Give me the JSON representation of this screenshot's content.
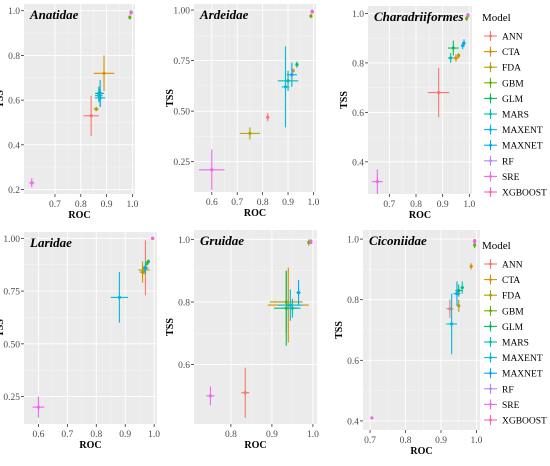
{
  "legend": {
    "title": "Model",
    "items": [
      "ANN",
      "CTA",
      "FDA",
      "GBM",
      "GLM",
      "MARS",
      "MAXENT",
      "MAXNET",
      "RF",
      "SRE",
      "XGBOOST"
    ]
  },
  "colors": {
    "ANN": "#f8766d",
    "CTA": "#db8e00",
    "FDA": "#aea200",
    "GBM": "#64b200",
    "GLM": "#00bd5c",
    "MARS": "#00c1a7",
    "MAXENT": "#00badf",
    "MAXNET": "#00a6ff",
    "RF": "#b385ff",
    "SRE": "#ef67eb",
    "XGBOOST": "#ff63b6"
  },
  "chart_data": [
    {
      "type": "scatter",
      "title": "Anatidae",
      "xlabel": "ROC",
      "ylabel": "TSS",
      "xlim": [
        0.58,
        1.01
      ],
      "ylim": [
        0.18,
        1.03
      ],
      "xticks": [
        0.7,
        0.8,
        0.9,
        1.0
      ],
      "xticklabels": [
        "0.7",
        "0.8",
        "0.9",
        "1.0"
      ],
      "yticks": [
        0.2,
        0.4,
        0.6,
        0.8,
        1.0
      ],
      "yticklabels": [
        "0.2",
        "0.4",
        "0.6",
        "0.8",
        "1.0"
      ],
      "points": [
        {
          "model": "ANN",
          "x": 0.84,
          "y": 0.53,
          "xerr": 0.03,
          "yerr": 0.09
        },
        {
          "model": "CTA",
          "x": 0.89,
          "y": 0.72,
          "xerr": 0.04,
          "yerr": 0.08
        },
        {
          "model": "FDA",
          "x": 0.86,
          "y": 0.56,
          "xerr": 0.01,
          "yerr": 0.01
        },
        {
          "model": "GBM",
          "x": 0.99,
          "y": 0.97,
          "xerr": 0.002,
          "yerr": 0.01
        },
        {
          "model": "GLM",
          "x": 0.87,
          "y": 0.63,
          "xerr": 0.015,
          "yerr": 0.03
        },
        {
          "model": "MARS",
          "x": 0.87,
          "y": 0.62,
          "xerr": 0.015,
          "yerr": 0.03
        },
        {
          "model": "MAXENT",
          "x": 0.875,
          "y": 0.61,
          "xerr": 0.02,
          "yerr": 0.04
        },
        {
          "model": "MAXNET",
          "x": 0.875,
          "y": 0.63,
          "xerr": 0.015,
          "yerr": 0.06
        },
        {
          "model": "RF",
          "x": 0.995,
          "y": 0.995,
          "xerr": 0.002,
          "yerr": 0.005
        },
        {
          "model": "SRE",
          "x": 0.61,
          "y": 0.23,
          "xerr": 0.01,
          "yerr": 0.02
        },
        {
          "model": "XGBOOST",
          "x": 0.995,
          "y": 0.99,
          "xerr": 0.002,
          "yerr": 0.005
        }
      ]
    },
    {
      "type": "scatter",
      "title": "Ardeidae",
      "xlabel": "ROC",
      "ylabel": "TSS",
      "xlim": [
        0.53,
        1.01
      ],
      "ylim": [
        0.1,
        1.03
      ],
      "xticks": [
        0.6,
        0.7,
        0.8,
        0.9,
        1.0
      ],
      "xticklabels": [
        "0.6",
        "0.7",
        "0.8",
        "0.9",
        "1.0"
      ],
      "yticks": [
        0.25,
        0.5,
        0.75,
        1.0
      ],
      "yticklabels": [
        "0.25",
        "0.50",
        "0.75",
        "1.00"
      ],
      "points": [
        {
          "model": "ANN",
          "x": 0.82,
          "y": 0.47,
          "xerr": 0.005,
          "yerr": 0.02
        },
        {
          "model": "CTA",
          "x": 0.92,
          "y": 0.7,
          "xerr": 0.005,
          "yerr": 0.01
        },
        {
          "model": "FDA",
          "x": 0.75,
          "y": 0.39,
          "xerr": 0.04,
          "yerr": 0.03
        },
        {
          "model": "GBM",
          "x": 0.99,
          "y": 0.97,
          "xerr": 0.002,
          "yerr": 0.01
        },
        {
          "model": "GLM",
          "x": 0.935,
          "y": 0.73,
          "xerr": 0.005,
          "yerr": 0.015
        },
        {
          "model": "MARS",
          "x": 0.9,
          "y": 0.65,
          "xerr": 0.04,
          "yerr": 0.05
        },
        {
          "model": "MAXENT",
          "x": 0.89,
          "y": 0.62,
          "xerr": 0.015,
          "yerr": 0.2
        },
        {
          "model": "MAXNET",
          "x": 0.915,
          "y": 0.68,
          "xerr": 0.02,
          "yerr": 0.06
        },
        {
          "model": "RF",
          "x": 0.995,
          "y": 0.995,
          "xerr": 0.002,
          "yerr": 0.005
        },
        {
          "model": "SRE",
          "x": 0.6,
          "y": 0.21,
          "xerr": 0.05,
          "yerr": 0.1
        },
        {
          "model": "XGBOOST",
          "x": 0.995,
          "y": 0.99,
          "xerr": 0.002,
          "yerr": 0.005
        }
      ]
    },
    {
      "type": "scatter",
      "title": "Charadriiformes",
      "xlabel": "ROC",
      "ylabel": "TSS",
      "xlim": [
        0.62,
        1.01
      ],
      "ylim": [
        0.27,
        1.03
      ],
      "xticks": [
        0.7,
        0.8,
        0.9,
        1.0
      ],
      "xticklabels": [
        "0.7",
        "0.8",
        "0.9",
        "1.0"
      ],
      "yticks": [
        0.4,
        0.6,
        0.8,
        1.0
      ],
      "yticklabels": [
        "0.4",
        "0.6",
        "0.8",
        "1.0"
      ],
      "points": [
        {
          "model": "ANN",
          "x": 0.885,
          "y": 0.68,
          "xerr": 0.04,
          "yerr": 0.1
        },
        {
          "model": "CTA",
          "x": 0.95,
          "y": 0.82,
          "xerr": 0.01,
          "yerr": 0.015
        },
        {
          "model": "FDA",
          "x": 0.96,
          "y": 0.83,
          "xerr": 0.005,
          "yerr": 0.01
        },
        {
          "model": "GBM",
          "x": 0.99,
          "y": 0.98,
          "xerr": 0.002,
          "yerr": 0.01
        },
        {
          "model": "GLM",
          "x": 0.94,
          "y": 0.86,
          "xerr": 0.02,
          "yerr": 0.03
        },
        {
          "model": "MARS",
          "x": 0.93,
          "y": 0.82,
          "xerr": 0.01,
          "yerr": 0.02
        },
        {
          "model": "MAXENT",
          "x": 0.975,
          "y": 0.87,
          "xerr": 0.005,
          "yerr": 0.015
        },
        {
          "model": "MAXNET",
          "x": 0.98,
          "y": 0.88,
          "xerr": 0.005,
          "yerr": 0.015
        },
        {
          "model": "RF",
          "x": 0.995,
          "y": 0.995,
          "xerr": 0.002,
          "yerr": 0.005
        },
        {
          "model": "SRE",
          "x": 0.655,
          "y": 0.32,
          "xerr": 0.02,
          "yerr": 0.05
        },
        {
          "model": "XGBOOST",
          "x": 0.995,
          "y": 0.99,
          "xerr": 0.002,
          "yerr": 0.005
        }
      ]
    },
    {
      "type": "scatter",
      "title": "Laridae",
      "xlabel": "ROC",
      "ylabel": "TSS",
      "xlim": [
        0.55,
        1.01
      ],
      "ylim": [
        0.12,
        1.03
      ],
      "xticks": [
        0.6,
        0.7,
        0.8,
        0.9,
        1.0
      ],
      "xticklabels": [
        "0.6",
        "0.7",
        "0.8",
        "0.9",
        "1.0"
      ],
      "yticks": [
        0.25,
        0.5,
        0.75,
        1.0
      ],
      "yticklabels": [
        "0.25",
        "0.50",
        "0.75",
        "1.00"
      ],
      "points": [
        {
          "model": "ANN",
          "x": 0.97,
          "y": 0.86,
          "xerr": 0.01,
          "yerr": 0.13
        },
        {
          "model": "CTA",
          "x": 0.96,
          "y": 0.84,
          "xerr": 0.01,
          "yerr": 0.05
        },
        {
          "model": "FDA",
          "x": 0.965,
          "y": 0.85,
          "xerr": 0.02,
          "yerr": 0.02
        },
        {
          "model": "GBM",
          "x": 0.975,
          "y": 0.88,
          "xerr": 0.003,
          "yerr": 0.01
        },
        {
          "model": "GLM",
          "x": 0.98,
          "y": 0.89,
          "xerr": 0.003,
          "yerr": 0.01
        },
        {
          "model": "MARS",
          "x": 0.97,
          "y": 0.86,
          "xerr": 0.01,
          "yerr": 0.03
        },
        {
          "model": "MAXENT",
          "x": 0.88,
          "y": 0.72,
          "xerr": 0.03,
          "yerr": 0.12
        },
        {
          "model": "MAXNET",
          "x": 0.97,
          "y": 0.86,
          "xerr": 0.005,
          "yerr": 0.02
        },
        {
          "model": "RF",
          "x": 0.995,
          "y": 1.0,
          "xerr": 0.002,
          "yerr": 0.003
        },
        {
          "model": "SRE",
          "x": 0.6,
          "y": 0.2,
          "xerr": 0.02,
          "yerr": 0.05
        },
        {
          "model": "XGBOOST",
          "x": 0.995,
          "y": 1.0,
          "xerr": 0.002,
          "yerr": 0.003
        }
      ]
    },
    {
      "type": "scatter",
      "title": "Gruidae",
      "xlabel": "ROC",
      "ylabel": "TSS",
      "xlim": [
        0.71,
        1.01
      ],
      "ylim": [
        0.41,
        1.03
      ],
      "xticks": [
        0.8,
        0.9,
        1.0
      ],
      "xticklabels": [
        "0.8",
        "0.9",
        "1.0"
      ],
      "yticks": [
        0.6,
        0.8,
        1.0
      ],
      "yticklabels": [
        "0.6",
        "0.8",
        "1.0"
      ],
      "points": [
        {
          "model": "ANN",
          "x": 0.835,
          "y": 0.51,
          "xerr": 0.01,
          "yerr": 0.08
        },
        {
          "model": "CTA",
          "x": 0.94,
          "y": 0.79,
          "xerr": 0.05,
          "yerr": 0.12
        },
        {
          "model": "FDA",
          "x": 0.935,
          "y": 0.8,
          "xerr": 0.04,
          "yerr": 0.1
        },
        {
          "model": "GBM",
          "x": 0.99,
          "y": 0.99,
          "xerr": 0.002,
          "yerr": 0.01
        },
        {
          "model": "GLM",
          "x": 0.935,
          "y": 0.78,
          "xerr": 0.03,
          "yerr": 0.12
        },
        {
          "model": "MARS",
          "x": 0.95,
          "y": 0.78,
          "xerr": 0.02,
          "yerr": 0.03
        },
        {
          "model": "MAXENT",
          "x": 0.945,
          "y": 0.79,
          "xerr": 0.03,
          "yerr": 0.05
        },
        {
          "model": "MAXNET",
          "x": 0.965,
          "y": 0.83,
          "xerr": 0.005,
          "yerr": 0.04
        },
        {
          "model": "RF",
          "x": 0.995,
          "y": 0.995,
          "xerr": 0.002,
          "yerr": 0.005
        },
        {
          "model": "SRE",
          "x": 0.75,
          "y": 0.5,
          "xerr": 0.01,
          "yerr": 0.03
        },
        {
          "model": "XGBOOST",
          "x": 0.995,
          "y": 0.99,
          "xerr": 0.002,
          "yerr": 0.005
        }
      ]
    },
    {
      "type": "scatter",
      "title": "Ciconiidae",
      "xlabel": "ROC",
      "ylabel": "TSS",
      "xlim": [
        0.68,
        1.01
      ],
      "ylim": [
        0.37,
        1.03
      ],
      "xticks": [
        0.7,
        0.8,
        0.9,
        1.0
      ],
      "xticklabels": [
        "0.7",
        "0.8",
        "0.9",
        "1.0"
      ],
      "yticks": [
        0.4,
        0.6,
        0.8,
        1.0
      ],
      "yticklabels": [
        "0.4",
        "0.6",
        "0.8",
        "1.0"
      ],
      "points": [
        {
          "model": "ANN",
          "x": 0.925,
          "y": 0.77,
          "xerr": 0.01,
          "yerr": 0.03
        },
        {
          "model": "CTA",
          "x": 0.985,
          "y": 0.91,
          "xerr": 0.003,
          "yerr": 0.01
        },
        {
          "model": "FDA",
          "x": 0.95,
          "y": 0.78,
          "xerr": 0.003,
          "yerr": 0.02
        },
        {
          "model": "GBM",
          "x": 0.995,
          "y": 0.98,
          "xerr": 0.002,
          "yerr": 0.01
        },
        {
          "model": "GLM",
          "x": 0.95,
          "y": 0.83,
          "xerr": 0.01,
          "yerr": 0.02
        },
        {
          "model": "MARS",
          "x": 0.96,
          "y": 0.84,
          "xerr": 0.005,
          "yerr": 0.02
        },
        {
          "model": "MAXENT",
          "x": 0.93,
          "y": 0.72,
          "xerr": 0.015,
          "yerr": 0.1
        },
        {
          "model": "MAXNET",
          "x": 0.945,
          "y": 0.82,
          "xerr": 0.01,
          "yerr": 0.04
        },
        {
          "model": "RF",
          "x": 0.995,
          "y": 0.99,
          "xerr": 0.002,
          "yerr": 0.005
        },
        {
          "model": "SRE",
          "x": 0.705,
          "y": 0.41,
          "xerr": 0.002,
          "yerr": 0.005
        },
        {
          "model": "XGBOOST",
          "x": 0.995,
          "y": 0.995,
          "xerr": 0.002,
          "yerr": 0.005
        }
      ]
    }
  ]
}
